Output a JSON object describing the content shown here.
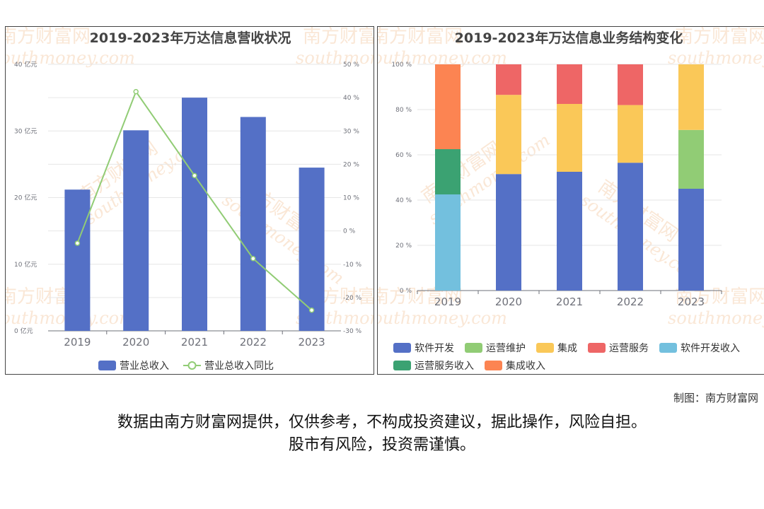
{
  "colors": {
    "revenue_bar": "#5470c6",
    "yoy_line": "#91cc75",
    "software_dev": "#5470c6",
    "ops_maintenance": "#91cc75",
    "integration": "#fac858",
    "ops_services": "#ee6666",
    "software_dev_income": "#73c0de",
    "ops_services_income": "#3ba272",
    "integration_income": "#fc8452",
    "watermark": "#f3c9a3"
  },
  "watermark": {
    "cn": "南方财富网",
    "en": "southmoney.com"
  },
  "chart_data": [
    {
      "type": "bar",
      "title": "2019-2023年万达信息营收状况",
      "categories": [
        "2019",
        "2020",
        "2021",
        "2022",
        "2023"
      ],
      "series": [
        {
          "name": "营业总收入",
          "kind": "bar",
          "axis": "left",
          "values": [
            21.2,
            30.1,
            35.0,
            32.1,
            24.5
          ]
        },
        {
          "name": "营业总收入同比",
          "kind": "line",
          "axis": "right",
          "values": [
            -3.7,
            41.8,
            16.6,
            -8.3,
            -23.8
          ]
        }
      ],
      "y_left": {
        "ylim": [
          0,
          40
        ],
        "ticks": [
          0,
          10,
          20,
          30,
          40
        ],
        "tick_labels": [
          "0 亿元",
          "10 亿元",
          "20 亿元",
          "30 亿元",
          "40 亿元"
        ]
      },
      "y_right": {
        "ylim": [
          -30,
          50
        ],
        "ticks": [
          -30,
          -20,
          -10,
          0,
          10,
          20,
          30,
          40,
          50
        ],
        "tick_labels": [
          "-30 %",
          "-20 %",
          "-10 %",
          "0 %",
          "10 %",
          "20 %",
          "30 %",
          "40 %",
          "50 %"
        ]
      },
      "grid": true,
      "legend": "bottom-center"
    },
    {
      "type": "bar",
      "stacked": true,
      "title": "2019-2023年万达信息业务结构变化",
      "categories": [
        "2019",
        "2020",
        "2021",
        "2022",
        "2023"
      ],
      "series": [
        {
          "name": "软件开发",
          "color_key": "software_dev",
          "values": [
            0,
            51.5,
            52.5,
            56.5,
            45.0
          ]
        },
        {
          "name": "运营维护",
          "color_key": "ops_maintenance",
          "values": [
            0,
            0,
            0,
            0,
            26.0
          ]
        },
        {
          "name": "集成",
          "color_key": "integration",
          "values": [
            0,
            35.0,
            30.0,
            25.5,
            29.0
          ]
        },
        {
          "name": "运营服务",
          "color_key": "ops_services",
          "values": [
            0,
            13.5,
            17.5,
            18.0,
            0
          ]
        },
        {
          "name": "软件开发收入",
          "color_key": "software_dev_income",
          "values": [
            42.5,
            0,
            0,
            0,
            0
          ]
        },
        {
          "name": "运营服务收入",
          "color_key": "ops_services_income",
          "values": [
            20.0,
            0,
            0,
            0,
            0
          ]
        },
        {
          "name": "集成收入",
          "color_key": "integration_income",
          "values": [
            37.5,
            0,
            0,
            0,
            0
          ]
        }
      ],
      "ylim": [
        0,
        100
      ],
      "ticks": [
        0,
        20,
        40,
        60,
        80,
        100
      ],
      "tick_labels": [
        "0 %",
        "20 %",
        "40 %",
        "60 %",
        "80 %",
        "100 %"
      ],
      "grid": true,
      "legend": "bottom"
    }
  ],
  "footer": {
    "credit": "制图：南方财富网",
    "disclaimer_line1": "数据由南方财富网提供，仅供参考，不构成投资建议，据此操作，风险自担。",
    "disclaimer_line2": "股市有风险，投资需谨慎。"
  }
}
